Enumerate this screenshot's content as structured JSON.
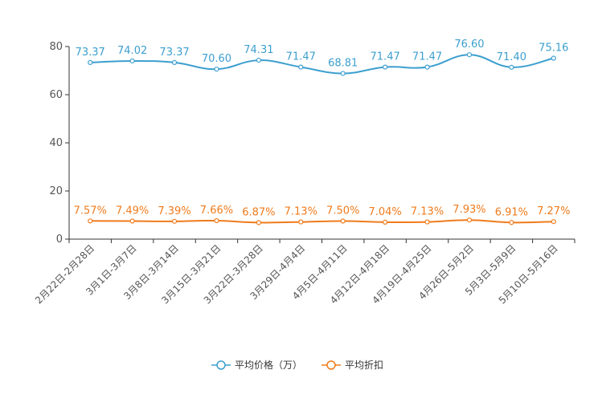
{
  "chart_data": {
    "type": "line",
    "categories": [
      "2月22日-2月28日",
      "3月1日-3月7日",
      "3月8日-3月14日",
      "3月15日-3月21日",
      "3月22日-3月28日",
      "3月29日-4月4日",
      "4月5日-4月11日",
      "4月12日-4月18日",
      "4月19日-4月25日",
      "4月26日-5月2日",
      "5月3日-5月9日",
      "5月10日-5月16日"
    ],
    "series": [
      {
        "name": "平均价格（万）",
        "color": "#3c9fcf",
        "values": [
          73.37,
          74.02,
          73.37,
          70.6,
          74.31,
          71.47,
          68.81,
          71.47,
          71.47,
          76.6,
          71.4,
          75.16
        ],
        "labels": [
          "73.37",
          "74.02",
          "73.37",
          "70.60",
          "74.31",
          "71.47",
          "68.81",
          "71.47",
          "71.47",
          "76.60",
          "71.40",
          "75.16"
        ]
      },
      {
        "name": "平均折扣",
        "color": "#f07b1c",
        "values": [
          7.57,
          7.49,
          7.39,
          7.66,
          6.87,
          7.13,
          7.5,
          7.04,
          7.13,
          7.93,
          6.91,
          7.27
        ],
        "labels": [
          "7.57%",
          "7.49%",
          "7.39%",
          "7.66%",
          "6.87%",
          "7.13%",
          "7.50%",
          "7.04%",
          "7.13%",
          "7.93%",
          "6.91%",
          "7.27%"
        ]
      }
    ],
    "ylim": [
      0,
      80
    ],
    "yticks": [
      "0",
      "20",
      "40",
      "60",
      "80"
    ],
    "legend_position": "bottom",
    "grid": false
  }
}
